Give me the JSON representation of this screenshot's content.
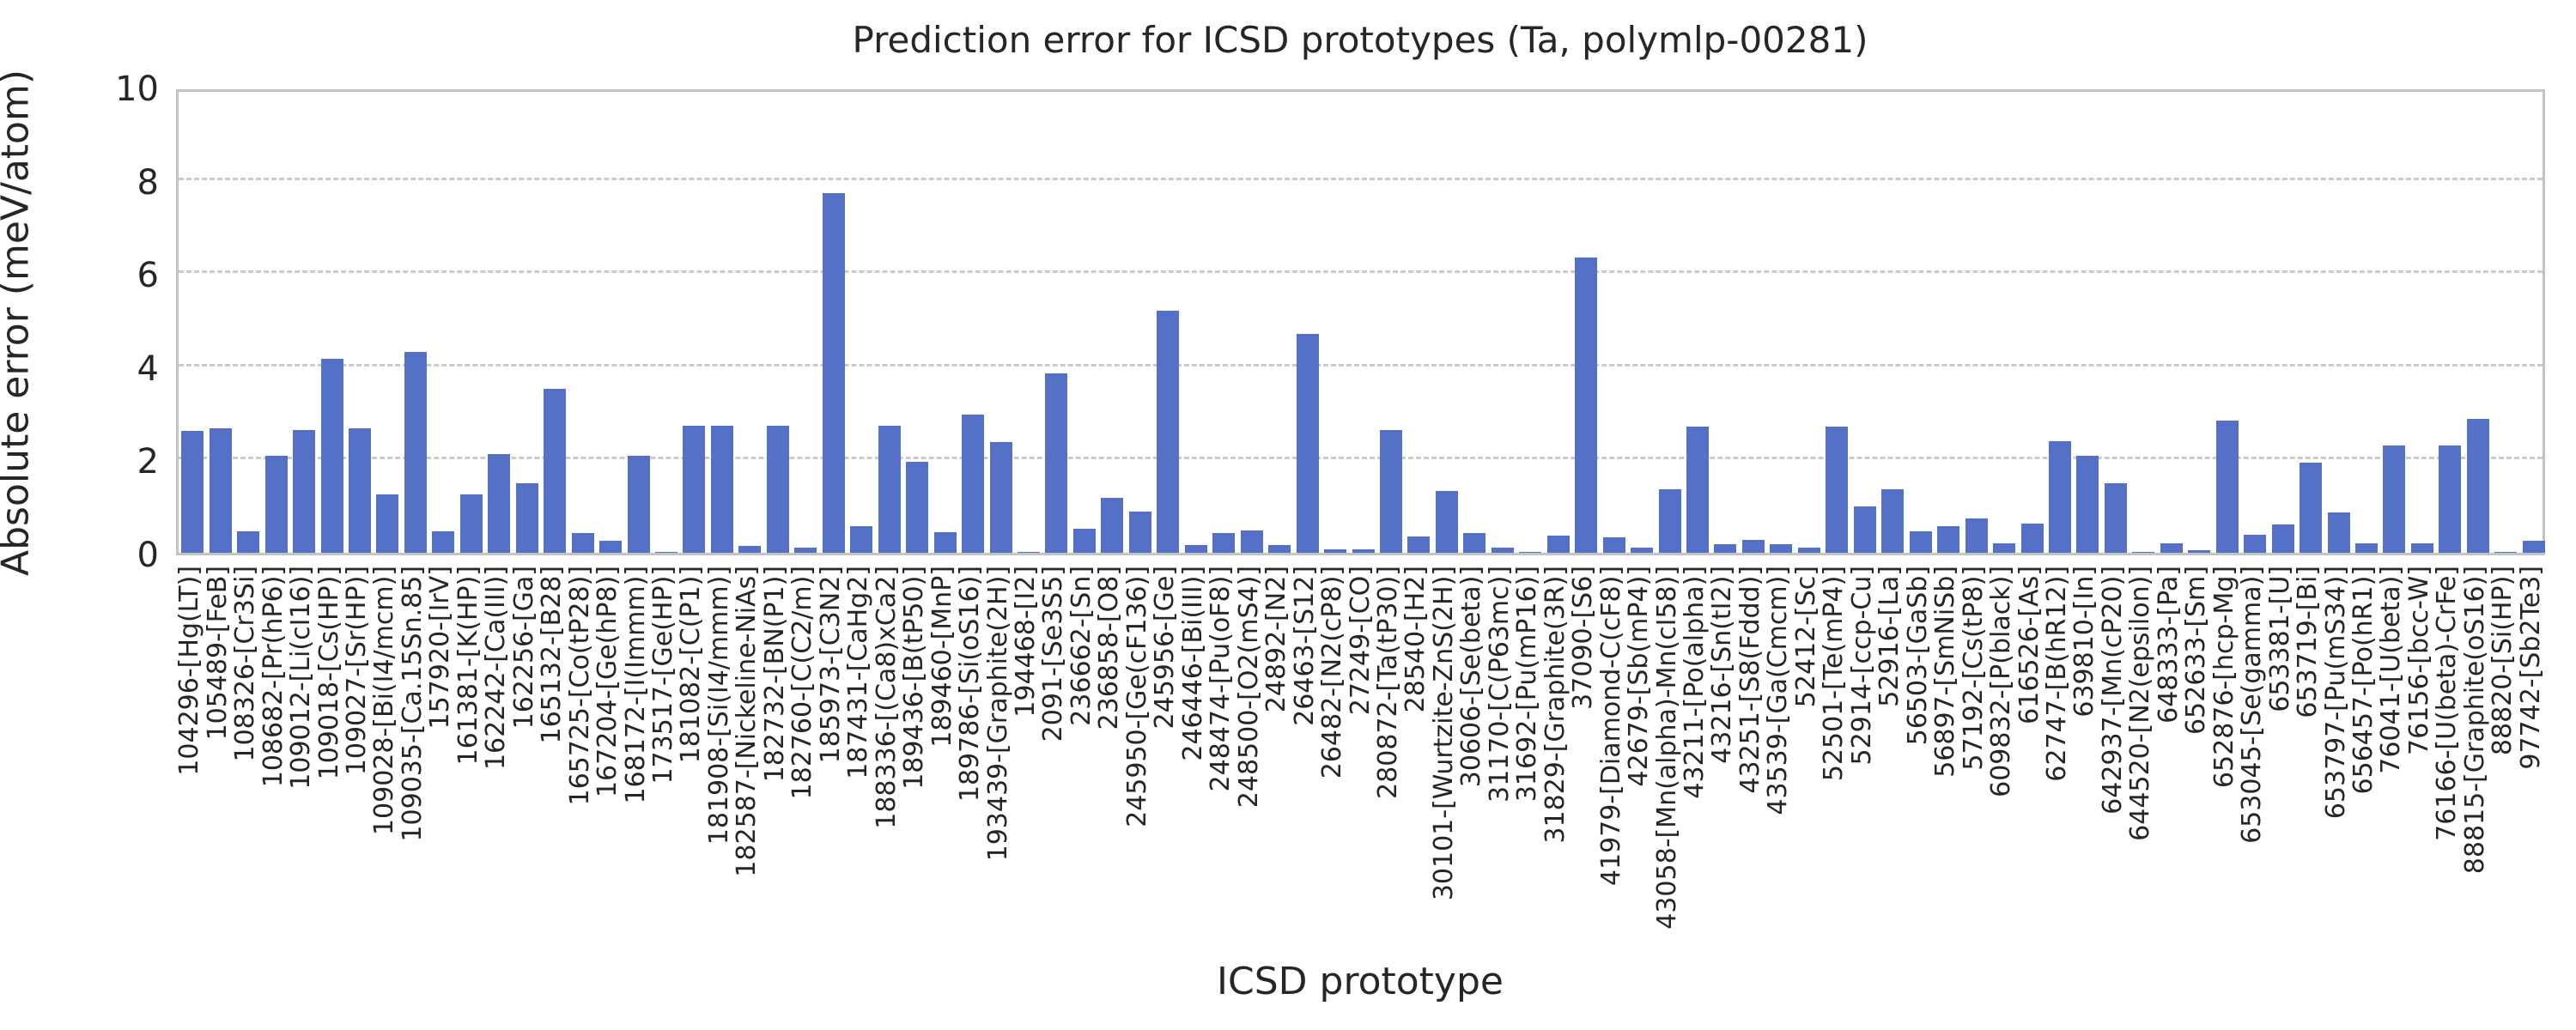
{
  "chart_data": {
    "type": "bar",
    "title": "Prediction error for ICSD prototypes (Ta, polymlp-00281)",
    "xlabel": "ICSD prototype",
    "ylabel": "Absolute error (meV/atom)",
    "ylim": [
      0,
      10
    ],
    "yticks": [
      0,
      2,
      4,
      6,
      8,
      10
    ],
    "grid": "horizontal-dashed",
    "legend": "none",
    "bar_color": "#5571c7",
    "categories": [
      "104296-[Hg(LT)]",
      "105489-[FeB]",
      "108326-[Cr3Si]",
      "108682-[Pr(hP6)]",
      "109012-[Li(cI16)]",
      "109018-[Cs(HP)]",
      "109027-[Sr(HP)]",
      "109028-[Bi(I4/mcm)]",
      "109035-[Ca.15Sn.85]",
      "157920-[IrV]",
      "161381-[K(HP)]",
      "162242-[Ca(III)]",
      "162256-[Ga]",
      "165132-[B28]",
      "165725-[Co(tP28)]",
      "167204-[Ge(hP8)]",
      "168172-[I(Immm)]",
      "173517-[Ge(HP)]",
      "181082-[C(P1)]",
      "181908-[Si(I4/mmm)]",
      "182587-[Nickeline-NiAs]",
      "182732-[BN(P1)]",
      "182760-[C(C2/m)]",
      "185973-[C3N2]",
      "187431-[CaHg2]",
      "188336-[(Ca8)xCa2]",
      "189436-[B(tP50)]",
      "189460-[MnP]",
      "189786-[Si(oS16)]",
      "193439-[Graphite(2H)]",
      "194468-[I2]",
      "2091-[Se3S5]",
      "236662-[Sn]",
      "236858-[O8]",
      "245950-[Ge(cF136)]",
      "245956-[Ge]",
      "246446-[Bi(III)]",
      "248474-[Pu(oF8)]",
      "248500-[O2(mS4)]",
      "24892-[N2]",
      "26463-[S12]",
      "26482-[N2(cP8)]",
      "27249-[CO]",
      "280872-[Ta(tP30)]",
      "28540-[H2]",
      "30101-[Wurtzite-ZnS(2H)]",
      "30606-[Se(beta)]",
      "31170-[C(P63mc)]",
      "31692-[Pu(mP16)]",
      "31829-[Graphite(3R)]",
      "37090-[S6]",
      "41979-[Diamond-C(cF8)]",
      "42679-[Sb(mP4)]",
      "43058-[Mn(alpha)-Mn(cI58)]",
      "43211-[Po(alpha)]",
      "43216-[Sn(tI2)]",
      "43251-[S8(Fddd)]",
      "43539-[Ga(Cmcm)]",
      "52412-[Sc]",
      "52501-[Te(mP4)]",
      "52914-[ccp-Cu]",
      "52916-[La]",
      "56503-[GaSb]",
      "56897-[SmNiSb]",
      "57192-[Cs(tP8)]",
      "609832-[P(black)]",
      "616526-[As]",
      "62747-[B(hR12)]",
      "639810-[In]",
      "642937-[Mn(cP20)]",
      "644520-[N2(epsilon)]",
      "648333-[Pa]",
      "652633-[Sm]",
      "652876-[hcp-Mg]",
      "653045-[Se(gamma)]",
      "653381-[U]",
      "653719-[Bi]",
      "653797-[Pu(mS34)]",
      "656457-[Po(hR1)]",
      "76041-[U(beta)]",
      "76156-[bcc-W]",
      "76166-[U(beta)-CrFe]",
      "88815-[Graphite(oS16)]",
      "88820-[Si(HP)]",
      "97742-[Sb2Te3]"
    ],
    "values": [
      2.65,
      2.7,
      0.47,
      2.1,
      2.67,
      4.2,
      2.7,
      1.27,
      4.35,
      0.47,
      1.27,
      2.15,
      1.5,
      3.55,
      0.43,
      0.27,
      2.1,
      0.02,
      2.75,
      2.75,
      0.15,
      2.75,
      0.12,
      7.8,
      0.58,
      2.75,
      1.97,
      0.45,
      3.0,
      2.4,
      0.02,
      3.9,
      0.53,
      1.2,
      0.9,
      5.25,
      0.16,
      0.42,
      0.48,
      0.17,
      4.75,
      0.07,
      0.07,
      2.66,
      0.36,
      1.35,
      0.42,
      0.11,
      0.02,
      0.37,
      6.4,
      0.34,
      0.12,
      1.37,
      2.73,
      0.18,
      0.28,
      0.18,
      0.12,
      2.73,
      1.0,
      1.37,
      0.47,
      0.58,
      0.74,
      0.2,
      0.64,
      2.42,
      2.1,
      1.5,
      0.02,
      0.2,
      0.05,
      2.87,
      0.39,
      0.62,
      1.96,
      0.87,
      0.2,
      2.33,
      0.2,
      2.33,
      2.9,
      0.01,
      0.27
    ]
  }
}
